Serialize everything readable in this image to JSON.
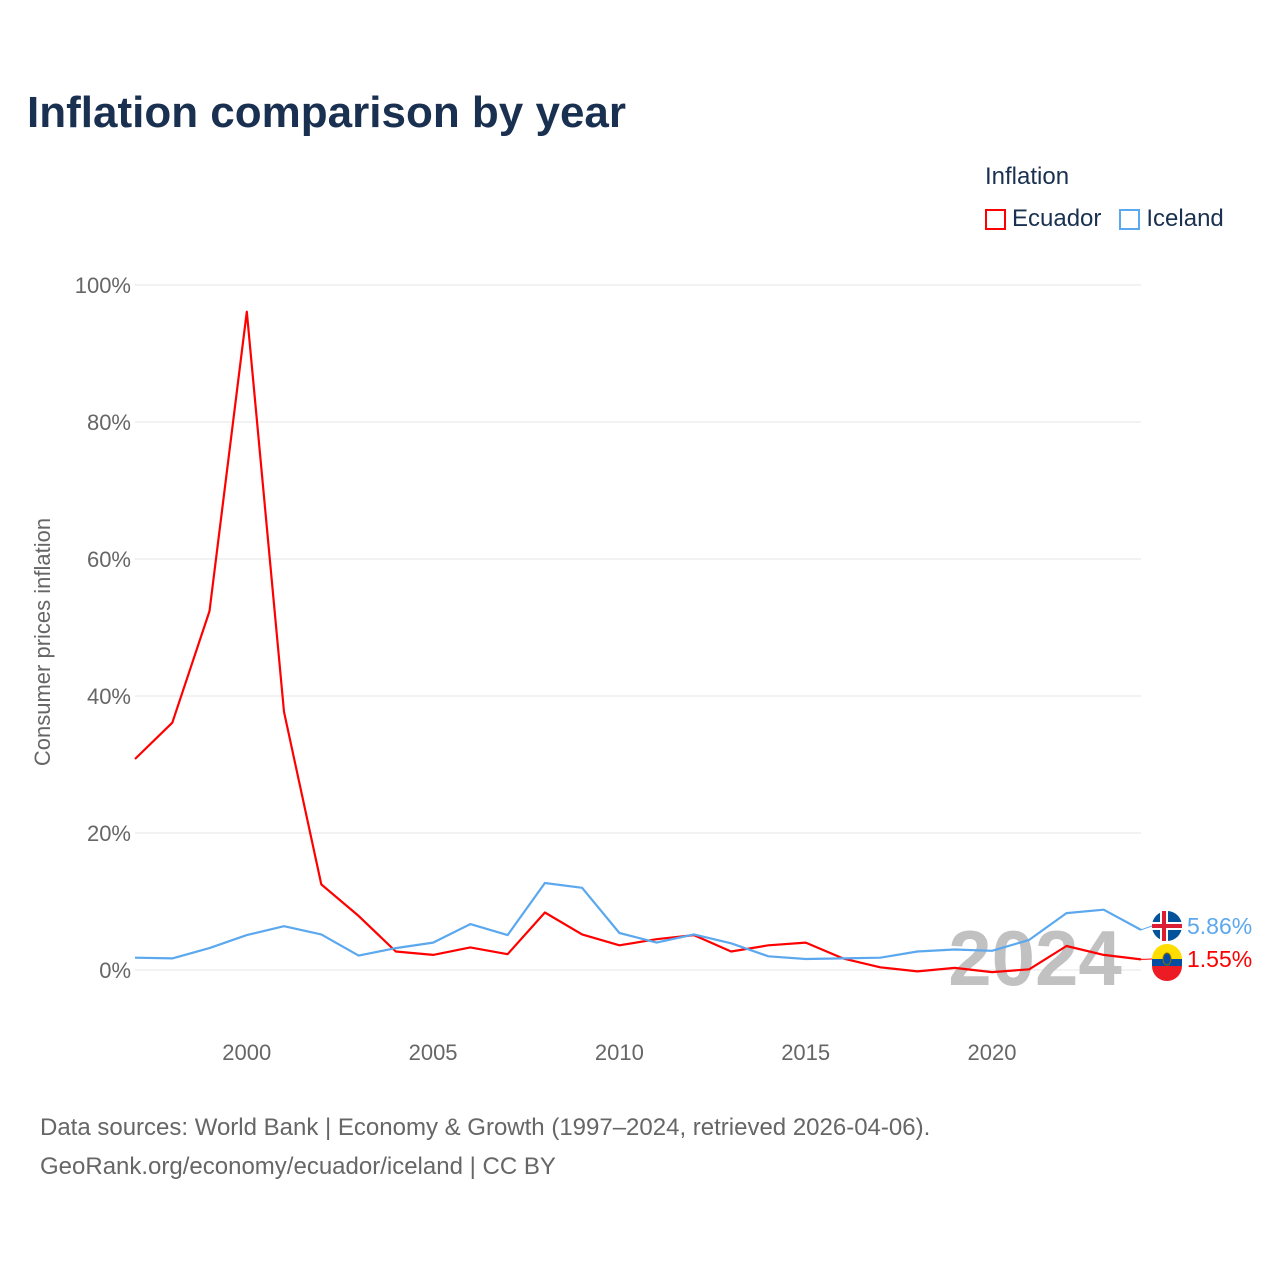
{
  "title": "Inflation comparison by year",
  "legend": {
    "title": "Inflation",
    "items": [
      {
        "label": "Ecuador",
        "color": "#ff0000"
      },
      {
        "label": "Iceland",
        "color": "#5ba8ef"
      }
    ]
  },
  "source": {
    "line1": "Data sources: World Bank | Economy & Growth (1997–2024, retrieved 2026-04-06).",
    "line2": "GeoRank.org/economy/ecuador/iceland | CC BY"
  },
  "chart_data": {
    "type": "line",
    "title": "Inflation comparison by year",
    "xlabel": "",
    "ylabel": "Consumer prices inflation",
    "x": [
      1997,
      1998,
      1999,
      2000,
      2001,
      2002,
      2003,
      2004,
      2005,
      2006,
      2007,
      2008,
      2009,
      2010,
      2011,
      2012,
      2013,
      2014,
      2015,
      2016,
      2017,
      2018,
      2019,
      2020,
      2021,
      2022,
      2023,
      2024
    ],
    "xlim": [
      1997,
      2024
    ],
    "ylim": [
      -10,
      100
    ],
    "xticks": [
      2000,
      2005,
      2010,
      2015,
      2020
    ],
    "yticks": [
      0,
      20,
      40,
      60,
      80,
      100
    ],
    "ytick_labels": [
      "0%",
      "20%",
      "40%",
      "60%",
      "80%",
      "100%"
    ],
    "grid": true,
    "legend_position": "top-right",
    "year_watermark": "2024",
    "series": [
      {
        "name": "Ecuador",
        "color": "#ff0000",
        "end_label": "1.55%",
        "values": [
          30.8,
          36.1,
          52.4,
          96.1,
          37.7,
          12.5,
          7.9,
          2.7,
          2.2,
          3.3,
          2.3,
          8.4,
          5.2,
          3.6,
          4.5,
          5.1,
          2.7,
          3.6,
          4.0,
          1.7,
          0.4,
          -0.2,
          0.3,
          -0.3,
          0.1,
          3.5,
          2.2,
          1.55
        ]
      },
      {
        "name": "Iceland",
        "color": "#5ba8ef",
        "end_label": "5.86%",
        "values": [
          1.8,
          1.7,
          3.2,
          5.1,
          6.4,
          5.2,
          2.1,
          3.2,
          4.0,
          6.7,
          5.1,
          12.7,
          12.0,
          5.4,
          4.0,
          5.2,
          3.9,
          2.0,
          1.6,
          1.7,
          1.8,
          2.7,
          3.0,
          2.8,
          4.4,
          8.3,
          8.8,
          5.86
        ]
      }
    ]
  }
}
